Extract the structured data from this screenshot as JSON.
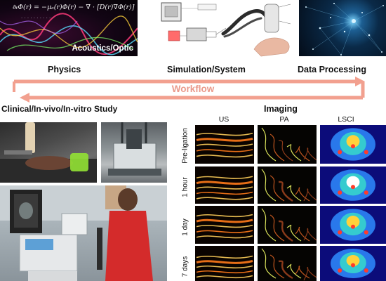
{
  "top": {
    "physics_panel_tag": "Acoustics/Optic",
    "physics_equation": "∂ₜΦ(r) = −μₐ(r)Φ(r) − ∇ · [D(r)∇Φ(r)]",
    "physics_label": "Physics",
    "system_label": "Simulation/System",
    "data_label": "Data Processing"
  },
  "workflow": {
    "label": "Workflow"
  },
  "study": {
    "label": "Clinical/In-vivo/In-vitro Study"
  },
  "imaging": {
    "title": "Imaging",
    "columns": [
      "US",
      "PA",
      "LSCI"
    ],
    "rows": [
      "Pre-ligation",
      "1 hour",
      "1 day",
      "7 days"
    ]
  },
  "colors": {
    "workflow_arrow": "#f2a08f",
    "workflow_text": "#ea9a8b",
    "us_hot": "#ff7a1a",
    "pa_hot": "#d8e05a",
    "lsci_base": "#0c0c7a"
  }
}
